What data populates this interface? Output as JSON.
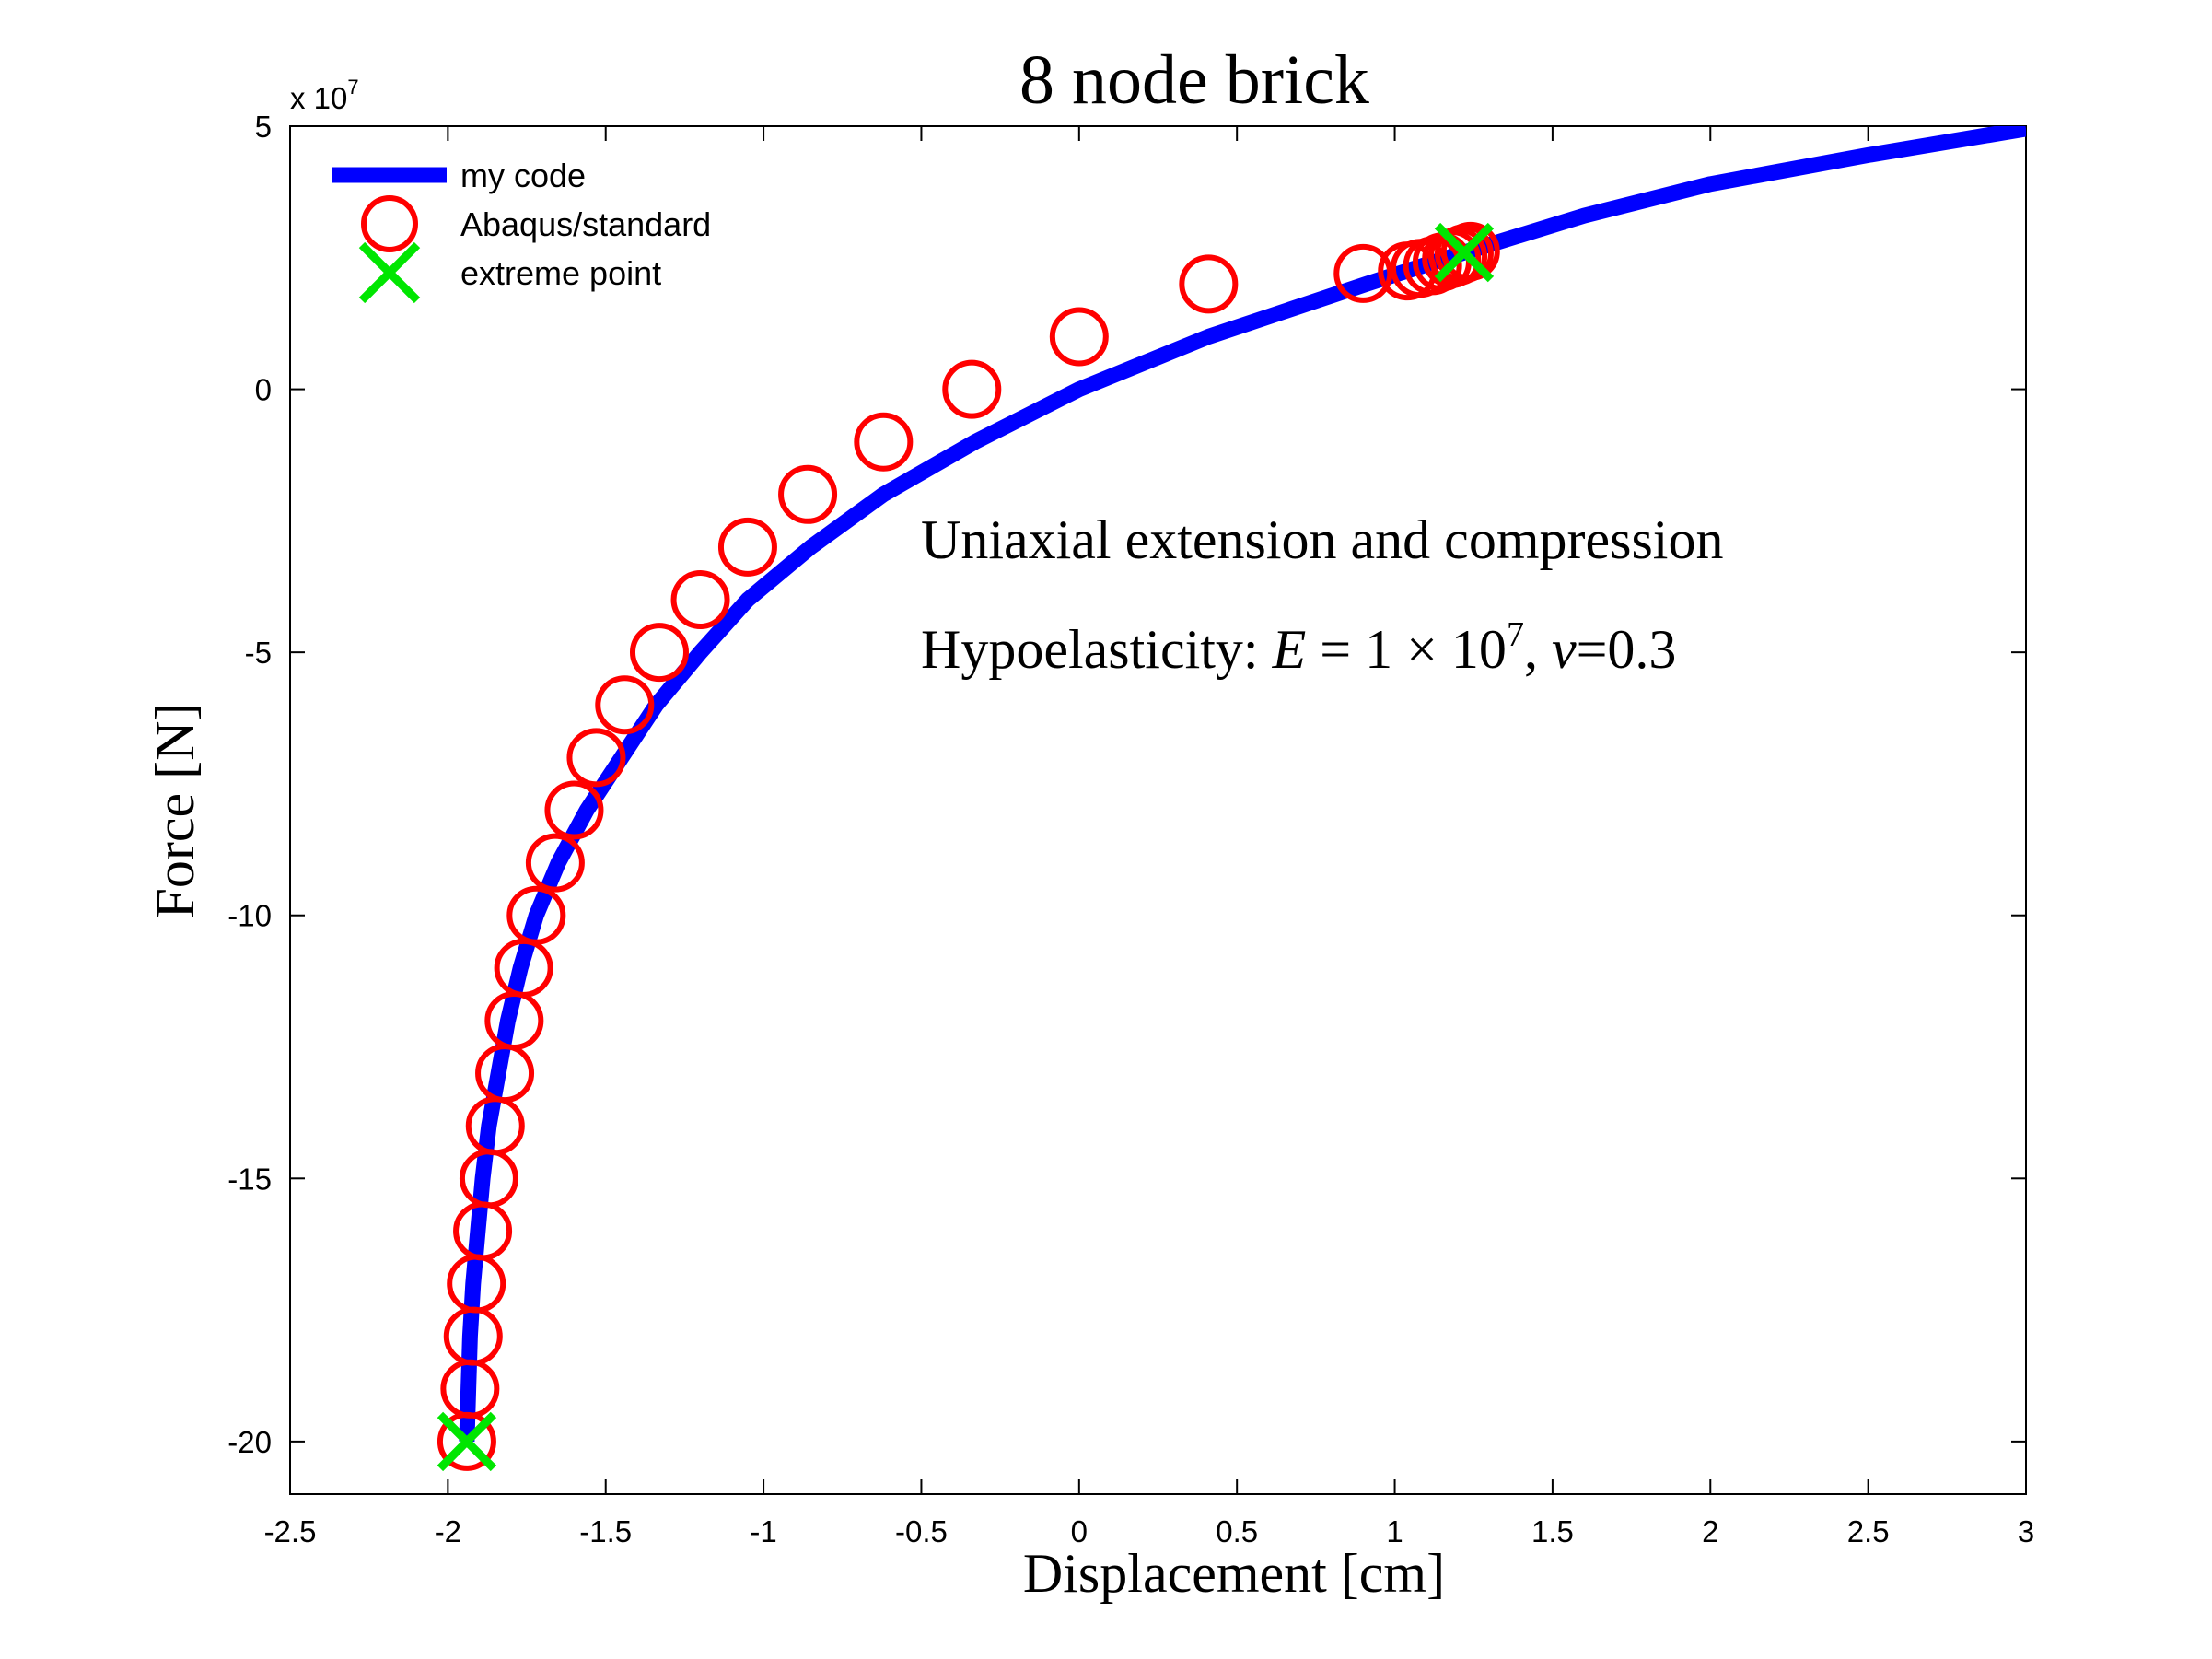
{
  "chart_data": {
    "type": "line",
    "title": "8 node brick",
    "xlabel": "Displacement [cm]",
    "ylabel": "Force [N]",
    "y_exponent_label": "x 10",
    "y_exponent_power": "7",
    "xlim": [
      -2.5,
      3
    ],
    "ylim": [
      -21,
      5
    ],
    "xticks": [
      -2.5,
      -2,
      -1.5,
      -1,
      -0.5,
      0,
      0.5,
      1,
      1.5,
      2,
      2.5,
      3
    ],
    "xtick_labels": [
      "-2.5",
      "-2",
      "-1.5",
      "-1",
      "-0.5",
      "0",
      "0.5",
      "1",
      "1.5",
      "2",
      "2.5",
      "3"
    ],
    "yticks": [
      -20,
      -15,
      -10,
      -5,
      0,
      5
    ],
    "ytick_labels": [
      "-20",
      "-15",
      "-10",
      "-5",
      "0",
      "5"
    ],
    "grid": false,
    "legend_position": "top-left",
    "annotation_line1": "Uniaxial extension and compression",
    "annotation_line2_prefix": "Hypoelasticity: ",
    "annotation_line2_E": "E",
    "annotation_line2_eq": " = 1 × 10",
    "annotation_line2_pow": "7",
    "annotation_line2_comma": ", ",
    "annotation_line2_nu": "ν",
    "annotation_line2_rest": "=0.3",
    "colors": {
      "my_code": "#0000ff",
      "abaqus": "#ff0000",
      "extreme": "#00e600",
      "axis": "#000000"
    },
    "series": [
      {
        "name": "my code",
        "style": "line",
        "x": [
          -1.94,
          -1.935,
          -1.93,
          -1.92,
          -1.905,
          -1.89,
          -1.87,
          -1.84,
          -1.81,
          -1.77,
          -1.72,
          -1.65,
          -1.56,
          -1.45,
          -1.34,
          -1.2,
          -1.05,
          -0.85,
          -0.62,
          -0.33,
          0.0,
          0.41,
          0.91,
          1.22,
          1.6,
          2.0,
          2.5,
          3.0
        ],
        "y": [
          -20,
          -19,
          -18,
          -17,
          -16,
          -15,
          -14,
          -13,
          -12,
          -11,
          -10,
          -9,
          -8,
          -7,
          -6,
          -5,
          -4,
          -3,
          -2,
          -1,
          0,
          1,
          2,
          2.6,
          3.3,
          3.9,
          4.45,
          4.95
        ]
      },
      {
        "name": "Abaqus/standard",
        "style": "circle",
        "x": [
          -1.94,
          -1.93,
          -1.92,
          -1.91,
          -1.89,
          -1.87,
          -1.85,
          -1.82,
          -1.79,
          -1.76,
          -1.72,
          -1.66,
          -1.6,
          -1.53,
          -1.44,
          -1.33,
          -1.2,
          -1.05,
          -0.86,
          -0.62,
          -0.34,
          0.0,
          0.41,
          0.9,
          1.04,
          1.08,
          1.12,
          1.15,
          1.18,
          1.2,
          1.22,
          1.24
        ],
        "y": [
          -20,
          -19,
          -18,
          -17,
          -16,
          -15,
          -14,
          -13,
          -12,
          -11,
          -10,
          -9,
          -8,
          -7,
          -6,
          -5,
          -4,
          -3,
          -2,
          -1,
          0,
          1,
          2,
          2.2,
          2.25,
          2.3,
          2.35,
          2.42,
          2.48,
          2.53,
          2.58,
          2.62
        ]
      },
      {
        "name": "extreme point",
        "style": "x",
        "x": [
          -1.94,
          1.22
        ],
        "y": [
          -20,
          2.6
        ]
      }
    ]
  }
}
